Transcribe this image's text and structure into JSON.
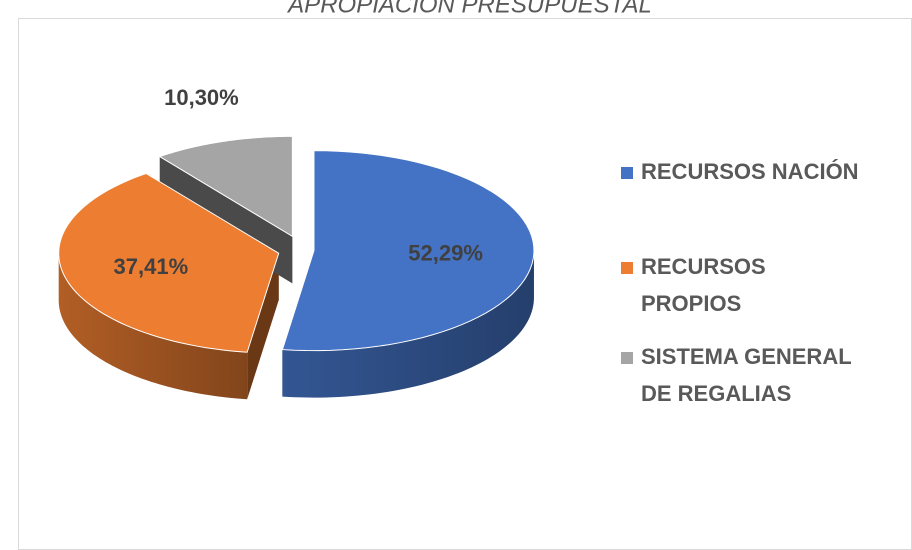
{
  "chart_data": {
    "type": "pie",
    "title": "APROPIACIÓN PRESUPUESTAL",
    "series": [
      {
        "name": "RECURSOS NACIÓN",
        "color": "#4472c4",
        "values": [
          52.29
        ],
        "value_labels": [
          "52,29%"
        ]
      },
      {
        "name": "RECURSOS PROPIOS",
        "color": "#ed7d31",
        "values": [
          37.41
        ],
        "value_labels": [
          "37,41%"
        ]
      },
      {
        "name": "SISTEMA GENERAL DE REGALIAS",
        "color": "#a5a5a5",
        "values": [
          10.3
        ],
        "value_labels": [
          "10,30%"
        ]
      }
    ],
    "legend": "right"
  }
}
